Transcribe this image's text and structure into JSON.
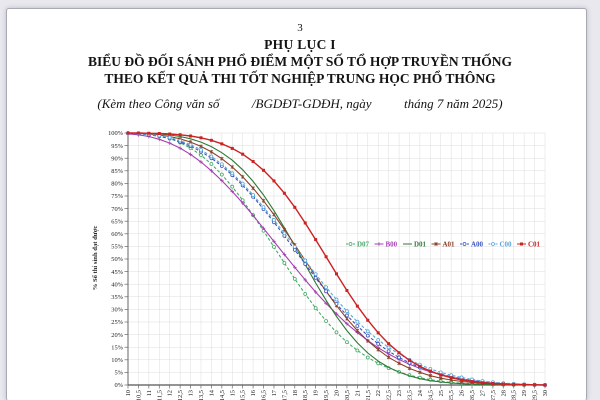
{
  "page": {
    "number": "3",
    "appendix": "PHỤ LỤC I",
    "title_line1": "BIỂU ĐỒ ĐỐI SÁNH PHỔ ĐIỂM MỘT SỐ TỔ HỢP TRUYỀN THỐNG",
    "title_line2": "THEO KẾT QUẢ THI TỐT NGHIỆP TRUNG HỌC PHỔ THÔNG",
    "subtitle": "(Kèm theo Công văn số          /BGDĐT-GDĐH, ngày          tháng 7 năm 2025)"
  },
  "chart_data": {
    "type": "line",
    "title": "",
    "xlabel": "",
    "ylabel": "% Số thí sinh đạt được",
    "xlim": [
      10,
      30
    ],
    "x_step": 0.5,
    "ylim": [
      0,
      100
    ],
    "y_tick_step": 5,
    "y_tick_suffix": "%",
    "decimal_separator": ",",
    "grid": true,
    "legend_position": "inside-middle-right",
    "grid_color": "#dcdcdc",
    "axis_color": "#666666",
    "x": [
      10,
      10.5,
      11,
      11.5,
      12,
      12.5,
      13,
      13.5,
      14,
      14.5,
      15,
      15.5,
      16,
      16.5,
      17,
      17.5,
      18,
      18.5,
      19,
      19.5,
      20,
      20.5,
      21,
      21.5,
      22,
      22.5,
      23,
      23.5,
      24,
      24.5,
      25,
      25.5,
      26,
      26.5,
      27,
      27.5,
      28,
      28.5,
      29,
      29.5,
      30
    ],
    "series": [
      {
        "name": "D07",
        "color": "#44aa66",
        "dash": "3 2",
        "marker": "circle",
        "values": [
          99.9,
          99.7,
          99.4,
          98.8,
          97.8,
          96.2,
          94.0,
          91.2,
          87.7,
          83.5,
          78.7,
          73.3,
          67.4,
          61.2,
          54.8,
          48.4,
          42.1,
          36.1,
          30.5,
          25.4,
          20.9,
          17.0,
          13.7,
          10.9,
          8.6,
          6.7,
          5.2,
          3.9,
          2.9,
          2.1,
          1.5,
          1.0,
          0.7,
          0.45,
          0.3,
          0.18,
          0.1,
          0.06,
          0.03,
          0.01,
          0
        ]
      },
      {
        "name": "B00",
        "color": "#a63fb3",
        "dash": "",
        "marker": "plus",
        "values": [
          99.7,
          99.3,
          98.6,
          97.5,
          96.0,
          94.0,
          91.5,
          88.5,
          85.0,
          81.1,
          76.8,
          72.2,
          67.3,
          62.2,
          57.0,
          51.8,
          46.7,
          41.7,
          36.9,
          32.4,
          28.2,
          24.3,
          20.8,
          17.6,
          14.8,
          12.3,
          10.1,
          8.2,
          6.6,
          5.2,
          4.1,
          3.1,
          2.3,
          1.7,
          1.2,
          0.8,
          0.5,
          0.3,
          0.17,
          0.08,
          0
        ]
      },
      {
        "name": "D01",
        "color": "#2d7a35",
        "dash": "",
        "marker": "none",
        "values": [
          100,
          99.9,
          99.8,
          99.6,
          99.2,
          98.6,
          97.7,
          96.4,
          94.6,
          92.2,
          89.2,
          85.4,
          80.8,
          75.4,
          69.2,
          62.4,
          55.2,
          47.8,
          40.5,
          33.6,
          27.2,
          21.6,
          16.7,
          12.7,
          9.5,
          7.0,
          5.1,
          3.6,
          2.5,
          1.7,
          1.2,
          0.8,
          0.5,
          0.3,
          0.2,
          0.12,
          0.07,
          0.04,
          0.02,
          0.01,
          0
        ]
      },
      {
        "name": "A01",
        "color": "#8b4028",
        "dash": "",
        "marker": "star",
        "values": [
          99.9,
          99.8,
          99.6,
          99.2,
          98.6,
          97.7,
          96.4,
          94.7,
          92.5,
          89.8,
          86.5,
          82.6,
          78.1,
          73.1,
          67.6,
          61.7,
          55.6,
          49.4,
          43.2,
          37.2,
          31.5,
          26.3,
          21.6,
          17.5,
          14.0,
          11.0,
          8.6,
          6.6,
          5.0,
          3.7,
          2.7,
          2.0,
          1.4,
          1.0,
          0.6,
          0.4,
          0.25,
          0.15,
          0.08,
          0.04,
          0
        ]
      },
      {
        "name": "A00",
        "color": "#3c52bb",
        "dash": "3 2",
        "marker": "circle",
        "values": [
          99.9,
          99.7,
          99.3,
          98.7,
          97.8,
          96.5,
          94.8,
          92.6,
          90.0,
          86.9,
          83.3,
          79.2,
          74.7,
          69.8,
          64.6,
          59.2,
          53.6,
          48.0,
          42.5,
          37.2,
          32.2,
          27.6,
          23.4,
          19.6,
          16.3,
          13.4,
          10.9,
          8.8,
          7.0,
          5.5,
          4.3,
          3.3,
          2.5,
          1.8,
          1.3,
          0.9,
          0.6,
          0.4,
          0.25,
          0.1,
          0
        ]
      },
      {
        "name": "C00",
        "color": "#58a8d8",
        "dash": "3 2",
        "marker": "circle",
        "values": [
          99.9,
          99.8,
          99.5,
          99.0,
          98.2,
          97.0,
          95.4,
          93.3,
          90.7,
          87.6,
          84.0,
          79.9,
          75.4,
          70.6,
          65.5,
          60.2,
          54.8,
          49.4,
          44.0,
          38.8,
          33.9,
          29.3,
          25.1,
          21.3,
          17.9,
          14.9,
          12.3,
          10.0,
          8.1,
          6.4,
          5.0,
          3.9,
          3.0,
          2.2,
          1.6,
          1.1,
          0.75,
          0.5,
          0.3,
          0.13,
          0
        ]
      },
      {
        "name": "C01",
        "color": "#cc2222",
        "dash": "",
        "marker": "square",
        "values": [
          100,
          100,
          99.9,
          99.8,
          99.6,
          99.3,
          98.8,
          98.1,
          97.1,
          95.7,
          93.9,
          91.6,
          88.7,
          85.2,
          81.0,
          76.1,
          70.5,
          64.3,
          57.7,
          50.9,
          44.1,
          37.5,
          31.3,
          25.7,
          20.7,
          16.4,
          12.8,
          9.8,
          7.4,
          5.5,
          4.0,
          2.9,
          2.0,
          1.4,
          0.9,
          0.6,
          0.4,
          0.25,
          0.15,
          0.07,
          0
        ]
      }
    ]
  }
}
